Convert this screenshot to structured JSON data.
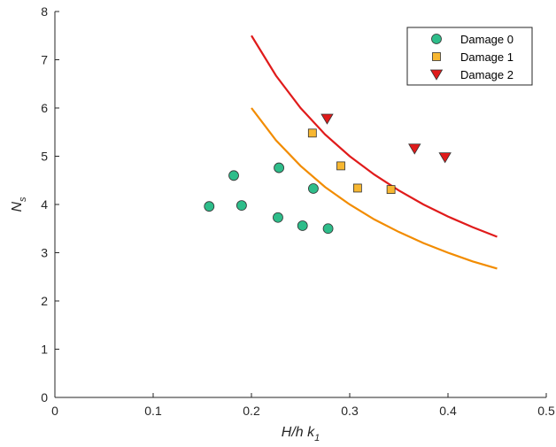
{
  "chart_data": {
    "type": "scatter",
    "xlabel": "H/h k",
    "xlabel_sub": "1",
    "ylabel": "N",
    "ylabel_sub": "s",
    "xlim": [
      0,
      0.5
    ],
    "ylim": [
      0,
      8
    ],
    "xticks": [
      0,
      0.1,
      0.2,
      0.3,
      0.4,
      0.5
    ],
    "xtick_labels": [
      "0",
      "0.1",
      "0.2",
      "0.3",
      "0.4",
      "0.5"
    ],
    "yticks": [
      0,
      1,
      2,
      3,
      4,
      5,
      6,
      7,
      8
    ],
    "ytick_labels": [
      "0",
      "1",
      "2",
      "3",
      "4",
      "5",
      "6",
      "7",
      "8"
    ],
    "grid": false,
    "legend_position": "top-right",
    "series": [
      {
        "name": "Damage 0",
        "marker": "circle",
        "color": "#2ebd8a",
        "x": [
          0.157,
          0.182,
          0.19,
          0.227,
          0.228,
          0.252,
          0.263,
          0.278
        ],
        "y": [
          3.96,
          4.6,
          3.98,
          3.73,
          4.76,
          3.56,
          4.33,
          3.5
        ]
      },
      {
        "name": "Damage 1",
        "marker": "square",
        "color": "#f7b731",
        "x": [
          0.262,
          0.291,
          0.308,
          0.342
        ],
        "y": [
          5.48,
          4.8,
          4.34,
          4.31
        ]
      },
      {
        "name": "Damage 2",
        "marker": "triangle-down",
        "color": "#e01b1b",
        "x": [
          0.277,
          0.366,
          0.397
        ],
        "y": [
          5.78,
          5.16,
          4.98
        ]
      }
    ],
    "curves": [
      {
        "color": "#e01b1b",
        "x": [
          0.2,
          0.225,
          0.25,
          0.275,
          0.3,
          0.325,
          0.35,
          0.375,
          0.4,
          0.425,
          0.45
        ],
        "y": [
          7.5,
          6.67,
          6.0,
          5.45,
          5.0,
          4.62,
          4.29,
          4.0,
          3.75,
          3.53,
          3.33
        ]
      },
      {
        "color": "#f28c00",
        "x": [
          0.2,
          0.225,
          0.25,
          0.275,
          0.3,
          0.325,
          0.35,
          0.375,
          0.4,
          0.425,
          0.45
        ],
        "y": [
          6.0,
          5.33,
          4.8,
          4.36,
          4.0,
          3.69,
          3.43,
          3.2,
          3.0,
          2.82,
          2.67
        ]
      }
    ]
  }
}
